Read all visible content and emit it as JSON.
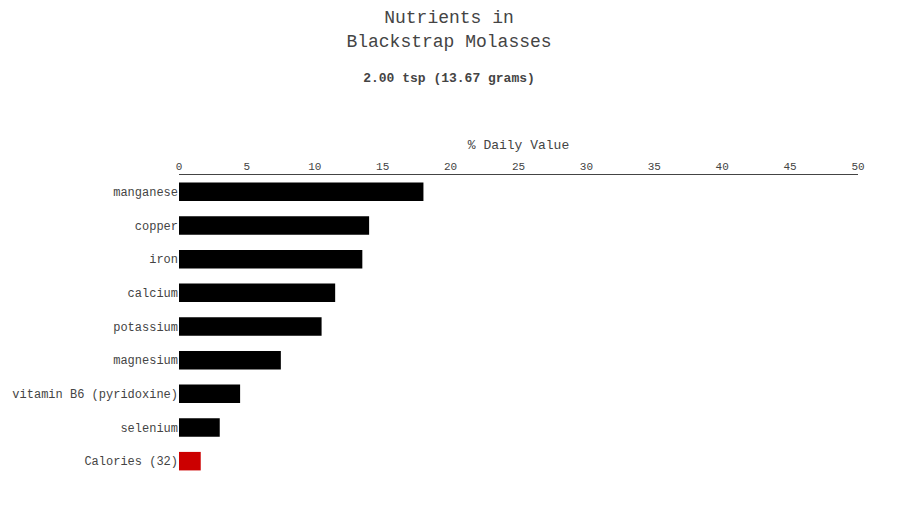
{
  "chart_data": {
    "type": "bar",
    "orientation": "horizontal",
    "title": "Nutrients in\nBlackstrap Molasses",
    "subtitle": "2.00 tsp (13.67 grams)",
    "xlabel": "% Daily Value",
    "categories": [
      "manganese",
      "copper",
      "iron",
      "calcium",
      "potassium",
      "magnesium",
      "vitamin B6 (pyridoxine)",
      "selenium",
      "Calories (32)"
    ],
    "values": [
      18.0,
      14.0,
      13.5,
      11.5,
      10.5,
      7.5,
      4.5,
      3.0,
      1.6
    ],
    "colors": [
      "#000000",
      "#000000",
      "#000000",
      "#000000",
      "#000000",
      "#000000",
      "#000000",
      "#000000",
      "#cc0000"
    ],
    "xlim": [
      0,
      50
    ],
    "xticks": [
      0,
      5,
      10,
      15,
      20,
      25,
      30,
      35,
      40,
      45,
      50
    ],
    "grid": false
  }
}
